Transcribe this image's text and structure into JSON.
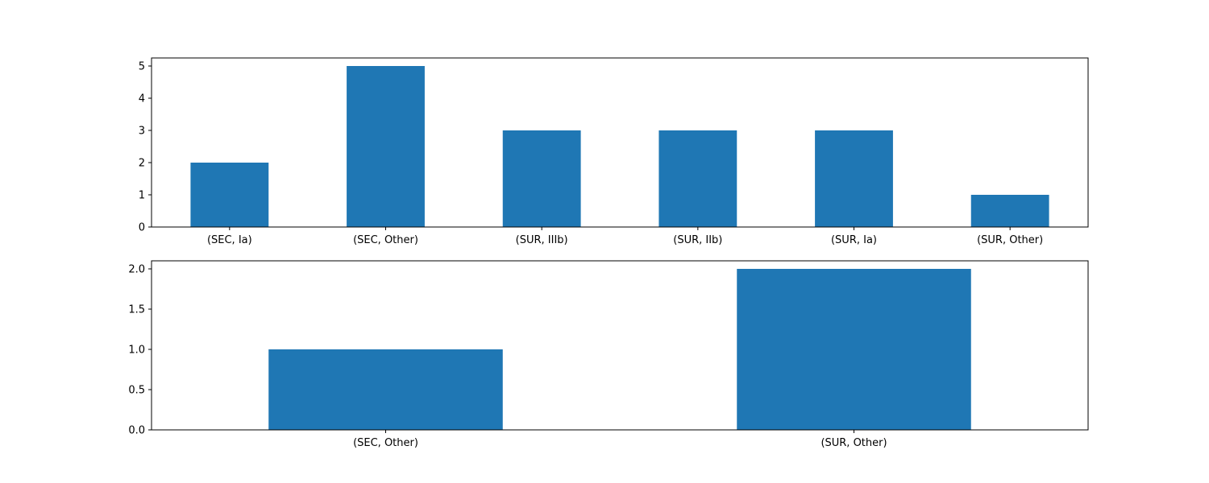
{
  "chart_data": [
    {
      "type": "bar",
      "title": "",
      "xlabel": "",
      "ylabel": "",
      "categories": [
        "(SEC, Ia)",
        "(SEC, Other)",
        "(SUR, IIIb)",
        "(SUR, IIb)",
        "(SUR, Ia)",
        "(SUR, Other)"
      ],
      "values": [
        2,
        5,
        3,
        3,
        3,
        1
      ],
      "ylim": [
        0,
        5.25
      ],
      "yticks": [
        0,
        1,
        2,
        3,
        4,
        5
      ],
      "ytick_labels": [
        "0",
        "1",
        "2",
        "3",
        "4",
        "5"
      ],
      "bar_color": "#1f77b4",
      "grid": false,
      "legend": "none"
    },
    {
      "type": "bar",
      "title": "",
      "xlabel": "",
      "ylabel": "",
      "categories": [
        "(SEC, Other)",
        "(SUR, Other)"
      ],
      "values": [
        1,
        2
      ],
      "ylim": [
        0,
        2.1
      ],
      "yticks": [
        0,
        0.5,
        1.0,
        1.5,
        2.0
      ],
      "ytick_labels": [
        "0.0",
        "0.5",
        "1.0",
        "1.5",
        "2.0"
      ],
      "bar_color": "#1f77b4",
      "grid": false,
      "legend": "none"
    }
  ]
}
